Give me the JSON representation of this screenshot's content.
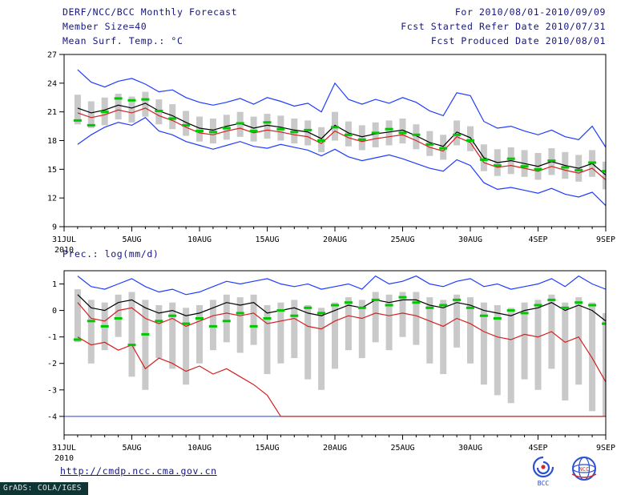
{
  "header": {
    "title": "DERF/NCC/BCC Monthly Forecast",
    "member_size": "Member Size=40",
    "temp_panel_label": "Mean Surf. Temp.: °C",
    "for_range": "For 2010/08/01-2010/09/09",
    "refer_date": "Fcst Started Refer Date 2010/07/31",
    "produced_date": "Fcst Produced Date 2010/08/01"
  },
  "prec_panel_label": "Prec.: log(mm/d)",
  "footer": {
    "url": "http://cmdp.ncc.cma.gov.cn",
    "grads_stamp": "GrADS: COLA/IGES",
    "bcc_logo_text": "BCC",
    "ncc_logo_text": "NCC"
  },
  "colors": {
    "line_blue": "#1e3cff",
    "line_red": "#d42020",
    "line_black": "#000000",
    "marker_green": "#00c800",
    "spread_gray": "#c9c9c9",
    "header_text": "#15157e"
  },
  "chart_data": [
    {
      "type": "line",
      "title": "Mean Surf. Temp.: °C",
      "xlabel": "",
      "ylabel": "",
      "xlim": [
        0,
        40
      ],
      "ylim": [
        9,
        27
      ],
      "yticks": [
        27,
        24,
        21,
        18,
        15,
        12,
        9
      ],
      "xticks": [
        {
          "x": 0,
          "label": "31JUL"
        },
        {
          "x": 5,
          "label": "5AUG"
        },
        {
          "x": 10,
          "label": "10AUG"
        },
        {
          "x": 15,
          "label": "15AUG"
        },
        {
          "x": 20,
          "label": "20AUG"
        },
        {
          "x": 25,
          "label": "25AUG"
        },
        {
          "x": 30,
          "label": "30AUG"
        },
        {
          "x": 35,
          "label": "4SEP"
        },
        {
          "x": 40,
          "label": "9SEP"
        }
      ],
      "x_year_label": "2010",
      "grid": false,
      "legend": "none",
      "x": [
        1,
        2,
        3,
        4,
        5,
        6,
        7,
        8,
        9,
        10,
        11,
        12,
        13,
        14,
        15,
        16,
        17,
        18,
        19,
        20,
        21,
        22,
        23,
        24,
        25,
        26,
        27,
        28,
        29,
        30,
        31,
        32,
        33,
        34,
        35,
        36,
        37,
        38,
        39,
        40
      ],
      "series": [
        {
          "name": "spread_band",
          "type": "bar-range",
          "color": "#c9c9c9",
          "high": [
            22.8,
            22.1,
            22.5,
            22.9,
            22.6,
            23.1,
            22.3,
            21.8,
            21.1,
            20.5,
            20.3,
            20.7,
            21.0,
            20.5,
            20.8,
            20.6,
            20.3,
            20.1,
            19.4,
            21.0,
            20.0,
            19.6,
            19.9,
            20.1,
            20.3,
            19.7,
            19.0,
            18.6,
            20.1,
            19.5,
            17.6,
            17.1,
            17.3,
            17.0,
            16.7,
            17.2,
            16.8,
            16.5,
            17.0,
            15.8
          ],
          "low": [
            19.7,
            19.3,
            19.6,
            20.2,
            19.9,
            20.5,
            19.7,
            19.2,
            18.5,
            17.9,
            17.7,
            18.1,
            18.4,
            17.9,
            18.2,
            18.0,
            17.7,
            17.5,
            16.8,
            18.0,
            17.4,
            17.0,
            17.3,
            17.5,
            17.7,
            17.1,
            16.4,
            16.0,
            17.5,
            16.9,
            14.8,
            14.3,
            14.5,
            14.2,
            13.9,
            14.4,
            14.0,
            13.7,
            14.2,
            12.9
          ]
        },
        {
          "name": "ensemble_max",
          "type": "line",
          "color": "#1e3cff",
          "values": [
            25.4,
            24.1,
            23.6,
            24.2,
            24.5,
            23.9,
            23.1,
            23.3,
            22.5,
            22.0,
            21.7,
            22.0,
            22.4,
            21.8,
            22.5,
            22.1,
            21.6,
            21.9,
            21.0,
            24.0,
            22.3,
            21.8,
            22.3,
            21.9,
            22.5,
            22.0,
            21.1,
            20.6,
            23.0,
            22.7,
            20.0,
            19.3,
            19.5,
            19.0,
            18.6,
            19.1,
            18.4,
            18.1,
            19.5,
            17.3
          ]
        },
        {
          "name": "ensemble_min",
          "type": "line",
          "color": "#1e3cff",
          "values": [
            17.6,
            18.6,
            19.4,
            19.9,
            19.6,
            20.4,
            19.0,
            18.6,
            17.9,
            17.5,
            17.1,
            17.5,
            17.9,
            17.4,
            17.2,
            17.6,
            17.3,
            17.0,
            16.4,
            17.1,
            16.3,
            15.9,
            16.2,
            16.5,
            16.1,
            15.6,
            15.1,
            14.8,
            16.0,
            15.4,
            13.6,
            12.9,
            13.1,
            12.8,
            12.5,
            13.0,
            12.4,
            12.1,
            12.6,
            11.2
          ]
        },
        {
          "name": "ensemble_mean",
          "type": "line",
          "color": "#000000",
          "values": [
            21.4,
            20.9,
            21.2,
            21.7,
            21.4,
            21.9,
            21.1,
            20.6,
            19.9,
            19.3,
            19.1,
            19.5,
            19.8,
            19.3,
            19.6,
            19.4,
            19.1,
            18.9,
            18.2,
            19.6,
            18.8,
            18.4,
            18.7,
            18.9,
            19.1,
            18.5,
            17.8,
            17.4,
            18.9,
            18.3,
            16.2,
            15.7,
            15.9,
            15.6,
            15.3,
            15.8,
            15.4,
            15.1,
            15.6,
            14.4
          ]
        },
        {
          "name": "control_median",
          "type": "line",
          "color": "#d42020",
          "values": [
            20.9,
            20.4,
            20.7,
            21.2,
            20.9,
            21.4,
            20.6,
            20.1,
            19.4,
            18.8,
            18.6,
            19.0,
            19.3,
            18.8,
            19.1,
            18.9,
            18.6,
            18.4,
            17.7,
            19.0,
            18.3,
            17.9,
            18.2,
            18.4,
            18.6,
            18.0,
            17.3,
            16.9,
            18.4,
            17.8,
            15.7,
            15.2,
            15.4,
            15.1,
            14.8,
            15.3,
            14.9,
            14.6,
            15.1,
            13.9
          ]
        },
        {
          "name": "green_markers",
          "type": "dash-markers",
          "color": "#00c800",
          "values": [
            20.1,
            19.6,
            21.0,
            22.4,
            22.2,
            22.3,
            21.1,
            20.3,
            19.6,
            19.0,
            18.9,
            19.3,
            19.8,
            19.0,
            19.9,
            19.2,
            18.9,
            19.1,
            18.0,
            19.4,
            18.6,
            18.1,
            18.8,
            19.2,
            18.8,
            18.6,
            17.6,
            17.2,
            18.6,
            18.0,
            16.0,
            15.4,
            16.1,
            15.3,
            15.0,
            15.9,
            15.2,
            14.9,
            15.7,
            14.8
          ]
        }
      ]
    },
    {
      "type": "line",
      "title": "Prec.: log(mm/d)",
      "xlabel": "",
      "ylabel": "",
      "xlim": [
        0,
        40
      ],
      "ylim": [
        -4.7,
        1.5
      ],
      "yticks": [
        1,
        0,
        -1,
        -2,
        -3,
        -4
      ],
      "xticks": [
        {
          "x": 0,
          "label": "31JUL"
        },
        {
          "x": 5,
          "label": "5AUG"
        },
        {
          "x": 10,
          "label": "10AUG"
        },
        {
          "x": 15,
          "label": "15AUG"
        },
        {
          "x": 20,
          "label": "20AUG"
        },
        {
          "x": 25,
          "label": "25AUG"
        },
        {
          "x": 30,
          "label": "30AUG"
        },
        {
          "x": 35,
          "label": "4SEP"
        },
        {
          "x": 40,
          "label": "9SEP"
        }
      ],
      "x_year_label": "2010",
      "grid": false,
      "legend": "none",
      "x": [
        1,
        2,
        3,
        4,
        5,
        6,
        7,
        8,
        9,
        10,
        11,
        12,
        13,
        14,
        15,
        16,
        17,
        18,
        19,
        20,
        21,
        22,
        23,
        24,
        25,
        26,
        27,
        28,
        29,
        30,
        31,
        32,
        33,
        34,
        35,
        36,
        37,
        38,
        39,
        40
      ],
      "series": [
        {
          "name": "spread_band",
          "type": "bar-range",
          "color": "#c9c9c9",
          "high": [
            0.8,
            0.4,
            0.3,
            0.6,
            0.7,
            0.4,
            0.2,
            0.3,
            0.1,
            0.2,
            0.4,
            0.6,
            0.5,
            0.6,
            0.2,
            0.3,
            0.4,
            0.2,
            0.1,
            0.3,
            0.5,
            0.4,
            0.7,
            0.6,
            0.7,
            0.7,
            0.5,
            0.4,
            0.6,
            0.5,
            0.3,
            0.2,
            0.1,
            0.3,
            0.4,
            0.6,
            0.3,
            0.5,
            0.3,
            -0.1
          ],
          "low": [
            -1.2,
            -2.0,
            -1.5,
            -1.0,
            -2.5,
            -3.0,
            -1.8,
            -2.2,
            -2.8,
            -2.0,
            -1.5,
            -1.2,
            -1.6,
            -1.3,
            -2.4,
            -2.0,
            -1.8,
            -2.6,
            -3.0,
            -2.2,
            -1.5,
            -1.8,
            -1.2,
            -1.5,
            -1.0,
            -1.3,
            -2.0,
            -2.4,
            -1.4,
            -2.0,
            -2.8,
            -3.2,
            -3.5,
            -2.6,
            -3.0,
            -2.2,
            -3.4,
            -2.8,
            -3.8,
            -4.0
          ]
        },
        {
          "name": "ensemble_max",
          "type": "line",
          "color": "#1e3cff",
          "values": [
            1.3,
            0.9,
            0.8,
            1.0,
            1.2,
            0.9,
            0.7,
            0.8,
            0.6,
            0.7,
            0.9,
            1.1,
            1.0,
            1.1,
            1.2,
            1.0,
            0.9,
            1.0,
            0.8,
            0.9,
            1.0,
            0.8,
            1.3,
            1.0,
            1.1,
            1.3,
            1.0,
            0.9,
            1.1,
            1.2,
            0.9,
            1.0,
            0.8,
            0.9,
            1.0,
            1.2,
            0.9,
            1.3,
            1.0,
            0.8
          ]
        },
        {
          "name": "ensemble_min_clipped",
          "type": "hline",
          "color": "#1e3cff",
          "value": -4.0
        },
        {
          "name": "ensemble_mean",
          "type": "line",
          "color": "#000000",
          "values": [
            0.6,
            0.1,
            0.0,
            0.3,
            0.4,
            0.1,
            -0.1,
            0.0,
            -0.2,
            -0.1,
            0.1,
            0.3,
            0.2,
            0.3,
            -0.1,
            0.0,
            0.1,
            -0.1,
            -0.2,
            0.0,
            0.2,
            0.1,
            0.4,
            0.3,
            0.4,
            0.4,
            0.2,
            0.1,
            0.3,
            0.2,
            0.0,
            -0.1,
            -0.2,
            0.0,
            0.1,
            0.3,
            0.0,
            0.2,
            0.0,
            -0.4
          ]
        },
        {
          "name": "control_median",
          "type": "line",
          "color": "#d42020",
          "values": [
            0.3,
            -0.3,
            -0.4,
            0.0,
            0.1,
            -0.3,
            -0.5,
            -0.3,
            -0.6,
            -0.4,
            -0.2,
            -0.1,
            -0.2,
            -0.1,
            -0.5,
            -0.4,
            -0.3,
            -0.6,
            -0.7,
            -0.4,
            -0.2,
            -0.3,
            -0.1,
            -0.2,
            -0.1,
            -0.2,
            -0.4,
            -0.6,
            -0.3,
            -0.5,
            -0.8,
            -1.0,
            -1.1,
            -0.9,
            -1.0,
            -0.8,
            -1.2,
            -1.0,
            -1.8,
            -2.7
          ]
        },
        {
          "name": "min_member",
          "type": "line",
          "color": "#d42020",
          "values": [
            -1.0,
            -1.3,
            -1.2,
            -1.5,
            -1.3,
            -2.2,
            -1.8,
            -2.0,
            -2.3,
            -2.1,
            -2.4,
            -2.2,
            -2.5,
            -2.8,
            -3.2,
            -4.0,
            -4.0,
            -4.0,
            -4.0,
            -4.0,
            -4.0,
            -4.0,
            -4.0,
            -4.0,
            -4.0,
            -4.0,
            -4.0,
            -4.0,
            -4.0,
            -4.0,
            -4.0,
            -4.0,
            -4.0,
            -4.0,
            -4.0,
            -4.0,
            -4.0,
            -4.0,
            -4.0,
            -4.0
          ]
        },
        {
          "name": "green_markers",
          "type": "dash-markers",
          "color": "#00c800",
          "values": [
            -1.1,
            -0.4,
            -0.6,
            -0.3,
            -1.3,
            -0.9,
            -0.4,
            -0.2,
            -0.5,
            -0.3,
            -0.6,
            -0.4,
            -0.1,
            -0.6,
            -0.3,
            0.0,
            -0.2,
            0.1,
            -0.1,
            0.2,
            0.3,
            0.1,
            0.4,
            0.2,
            0.5,
            0.3,
            0.1,
            0.2,
            0.4,
            0.1,
            -0.2,
            -0.3,
            0.0,
            -0.1,
            0.2,
            0.4,
            0.1,
            0.3,
            0.2,
            -0.5
          ]
        }
      ]
    }
  ]
}
